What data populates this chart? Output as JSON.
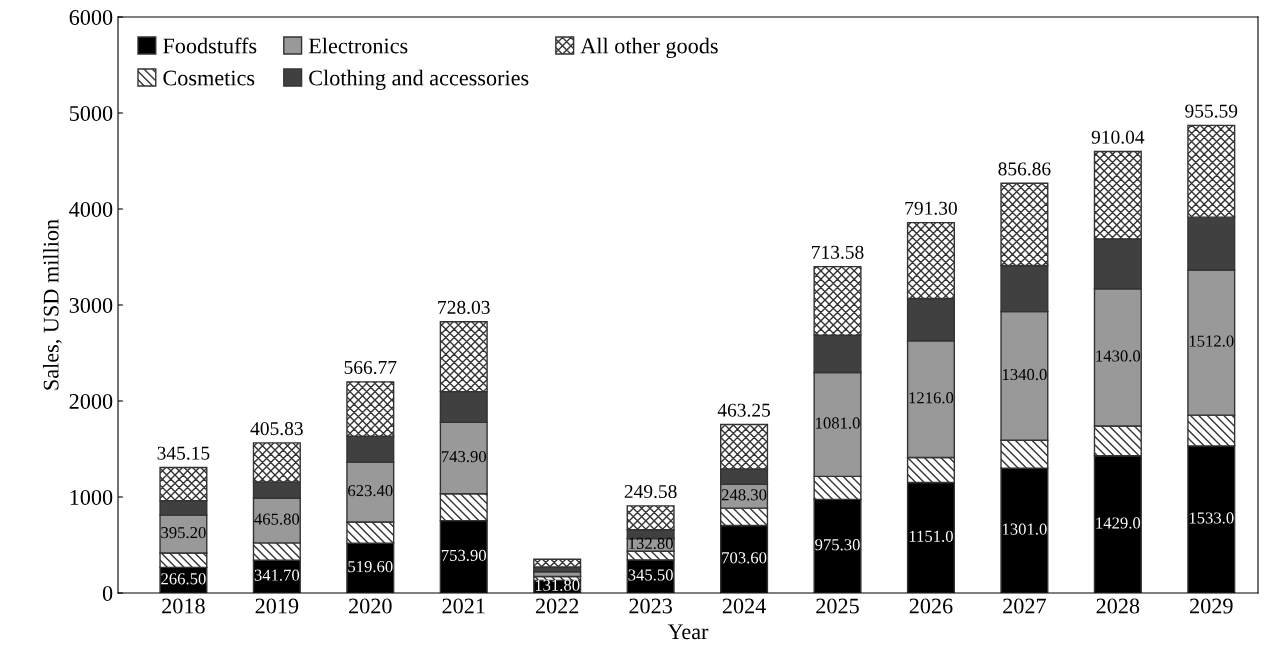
{
  "chart_data": {
    "type": "bar",
    "stacked": true,
    "xlabel": "Year",
    "ylabel": "Sales, USD million",
    "categories": [
      "2018",
      "2019",
      "2020",
      "2021",
      "2022",
      "2023",
      "2024",
      "2025",
      "2026",
      "2027",
      "2028",
      "2029"
    ],
    "ylim": [
      0,
      6000
    ],
    "yticks": [
      0,
      1000,
      2000,
      3000,
      4000,
      5000,
      6000
    ],
    "grid": false,
    "legend": "top left",
    "series": [
      {
        "name": "Foodstuffs",
        "color": "#000000",
        "values": [
          266.5,
          341.7,
          519.6,
          753.9,
          131.8,
          345.5,
          703.6,
          975.3,
          1151.0,
          1301.0,
          1429.0,
          1533.0
        ],
        "value_labels": [
          "266.50",
          "341.70",
          "519.60",
          "753.90",
          "131.80",
          "345.50",
          "703.60",
          "975.30",
          "1151.0",
          "1301.0",
          "1429.0",
          "1533.0"
        ]
      },
      {
        "name": "Cosmetics",
        "color": "#333333",
        "values": [
          150,
          180,
          220,
          280,
          40,
          90,
          180,
          240,
          260,
          290,
          310,
          320
        ]
      },
      {
        "name": "Electronics",
        "color": "#999999",
        "values": [
          395.2,
          465.8,
          623.4,
          743.9,
          50,
          132.8,
          248.3,
          1081.0,
          1216.0,
          1340.0,
          1430.0,
          1512.0
        ],
        "value_labels": [
          "395.20",
          "465.80",
          "623.40",
          "743.90",
          null,
          "132.80",
          "248.30",
          "1081.0",
          "1216.0",
          "1340.0",
          "1430.0",
          "1512.0"
        ]
      },
      {
        "name": "Clothing and accessories",
        "color": "#404040",
        "values": [
          150,
          170,
          270,
          320,
          50,
          90,
          160,
          390,
          440,
          480,
          520,
          550
        ]
      },
      {
        "name": "All other goods",
        "color": "#333333",
        "values": [
          345.15,
          405.83,
          566.77,
          728.03,
          80,
          249.58,
          463.25,
          713.58,
          791.3,
          856.86,
          910.04,
          955.59
        ],
        "value_labels": [
          "345.15",
          "405.83",
          "566.77",
          "728.03",
          null,
          "249.58",
          "463.25",
          "713.58",
          "791.30",
          "856.86",
          "910.04",
          "955.59"
        ]
      }
    ]
  }
}
